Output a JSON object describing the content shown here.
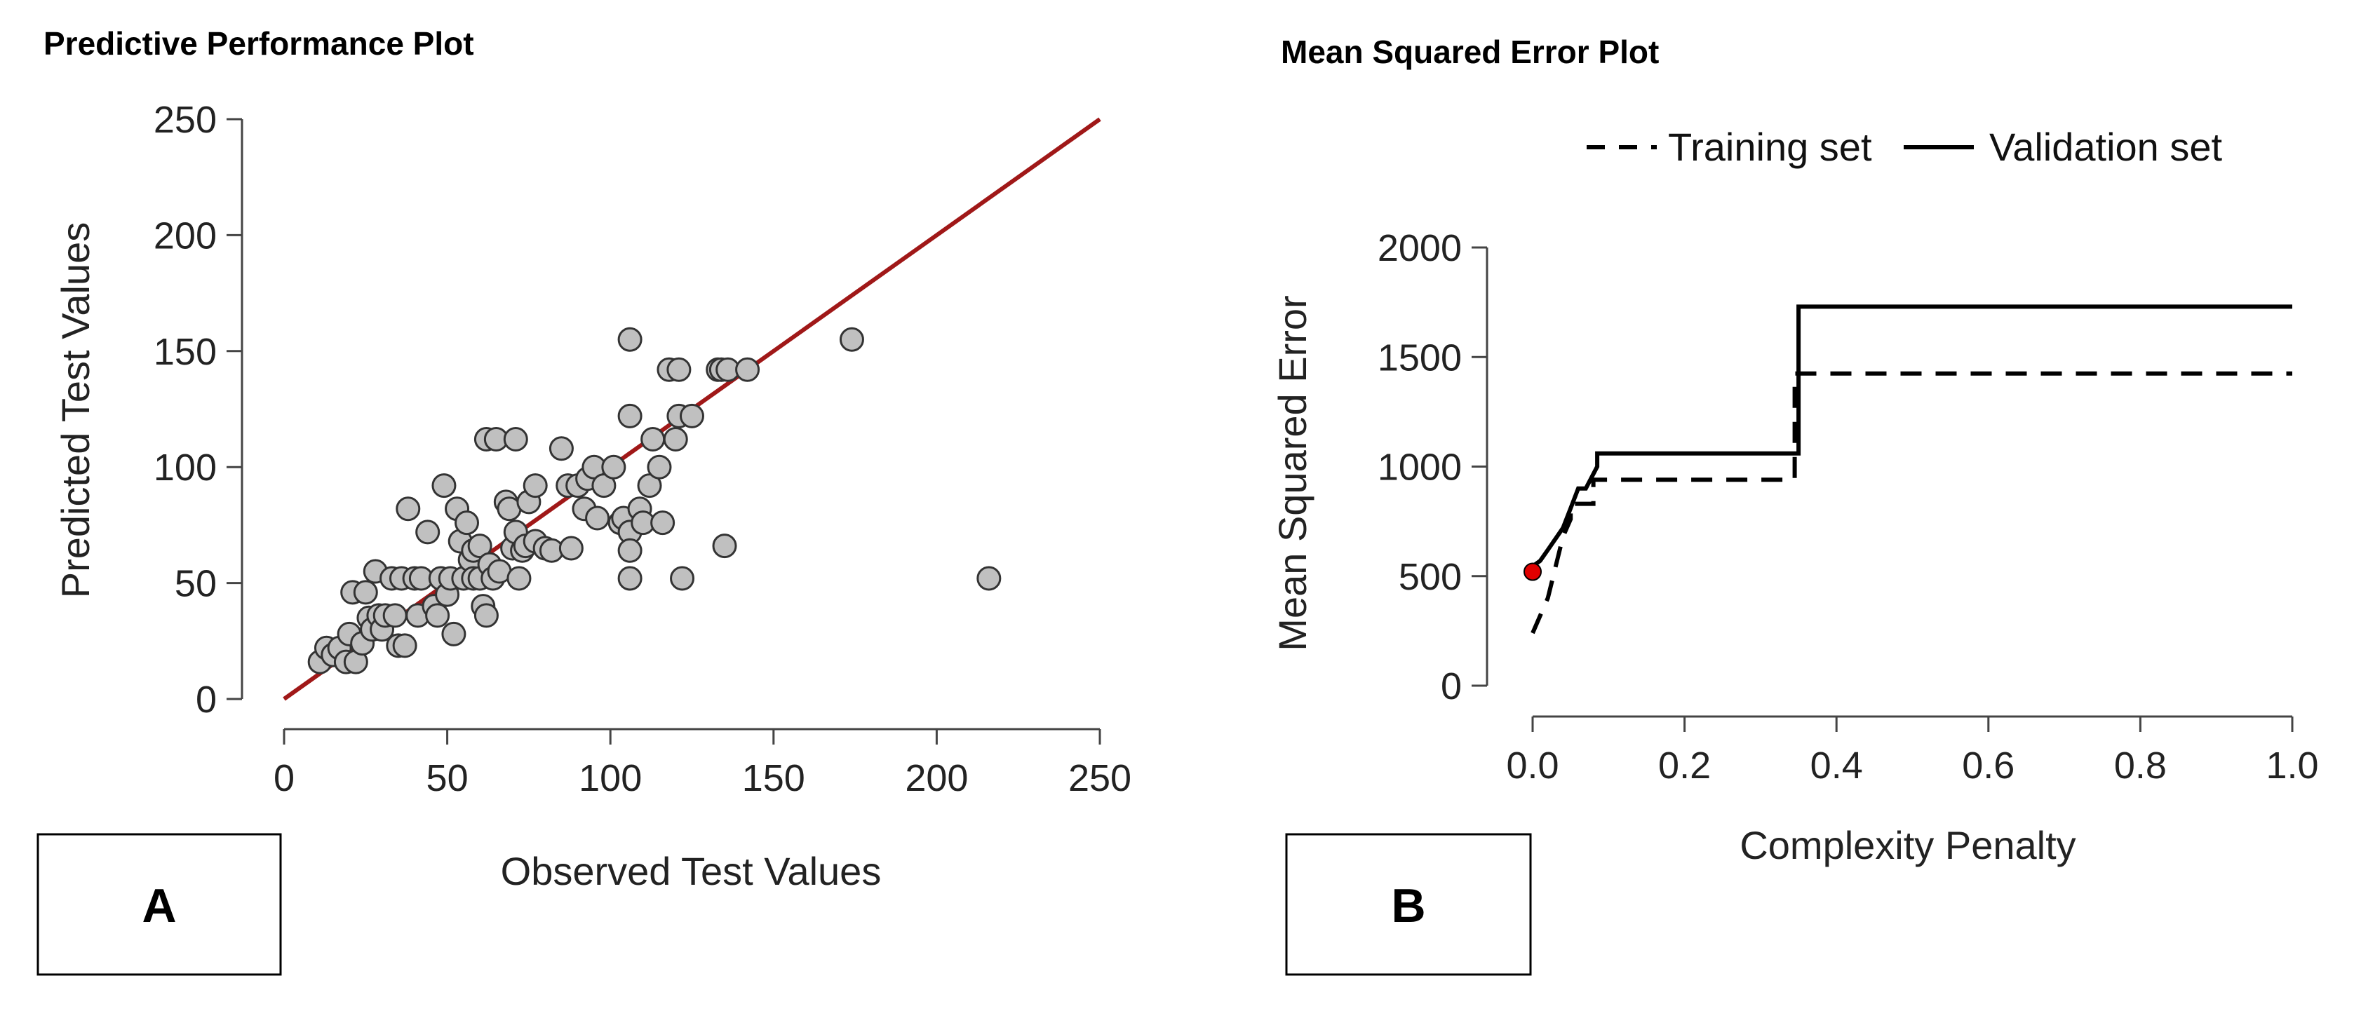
{
  "chart_data": [
    {
      "type": "scatter",
      "title": "Predictive Performance Plot",
      "xlabel": "Observed Test Values",
      "ylabel": "Predicted Test Values",
      "xlim": [
        0,
        250
      ],
      "ylim": [
        0,
        250
      ],
      "xticks": [
        "0",
        "50",
        "100",
        "150",
        "200",
        "250"
      ],
      "yticks": [
        "0",
        "50",
        "100",
        "150",
        "200",
        "250"
      ],
      "grid": false,
      "reference_line": {
        "x": [
          0,
          250
        ],
        "y": [
          0,
          250
        ],
        "color": "#a01818"
      },
      "point_color": "#c0c0c0",
      "panel_label": "A",
      "points": [
        [
          11,
          16
        ],
        [
          13,
          22
        ],
        [
          15,
          19
        ],
        [
          17,
          22
        ],
        [
          19,
          16
        ],
        [
          20,
          28
        ],
        [
          21,
          46
        ],
        [
          22,
          16
        ],
        [
          24,
          24
        ],
        [
          25,
          46
        ],
        [
          26,
          35
        ],
        [
          27,
          30
        ],
        [
          28,
          55
        ],
        [
          29,
          36
        ],
        [
          30,
          30
        ],
        [
          31,
          36
        ],
        [
          33,
          52
        ],
        [
          34,
          36
        ],
        [
          35,
          23
        ],
        [
          36,
          52
        ],
        [
          37,
          23
        ],
        [
          38,
          82
        ],
        [
          40,
          52
        ],
        [
          41,
          36
        ],
        [
          42,
          52
        ],
        [
          44,
          72
        ],
        [
          46,
          40
        ],
        [
          47,
          36
        ],
        [
          48,
          52
        ],
        [
          49,
          92
        ],
        [
          50,
          45
        ],
        [
          51,
          52
        ],
        [
          52,
          28
        ],
        [
          53,
          82
        ],
        [
          54,
          68
        ],
        [
          55,
          52
        ],
        [
          56,
          76
        ],
        [
          57,
          60
        ],
        [
          58,
          52
        ],
        [
          58,
          64
        ],
        [
          60,
          52
        ],
        [
          60,
          66
        ],
        [
          61,
          40
        ],
        [
          62,
          36
        ],
        [
          62,
          112
        ],
        [
          63,
          58
        ],
        [
          64,
          52
        ],
        [
          65,
          112
        ],
        [
          66,
          55
        ],
        [
          68,
          85
        ],
        [
          69,
          82
        ],
        [
          70,
          65
        ],
        [
          71,
          72
        ],
        [
          71,
          112
        ],
        [
          72,
          52
        ],
        [
          73,
          64
        ],
        [
          74,
          66
        ],
        [
          75,
          85
        ],
        [
          77,
          92
        ],
        [
          77,
          68
        ],
        [
          80,
          65
        ],
        [
          82,
          64
        ],
        [
          85,
          108
        ],
        [
          87,
          92
        ],
        [
          88,
          65
        ],
        [
          90,
          92
        ],
        [
          92,
          82
        ],
        [
          93,
          95
        ],
        [
          95,
          100
        ],
        [
          96,
          78
        ],
        [
          98,
          92
        ],
        [
          101,
          100
        ],
        [
          103,
          76
        ],
        [
          104,
          78
        ],
        [
          106,
          155
        ],
        [
          106,
          122
        ],
        [
          106,
          72
        ],
        [
          106,
          64
        ],
        [
          106,
          52
        ],
        [
          109,
          82
        ],
        [
          110,
          76
        ],
        [
          112,
          92
        ],
        [
          113,
          112
        ],
        [
          115,
          100
        ],
        [
          116,
          76
        ],
        [
          118,
          142
        ],
        [
          120,
          112
        ],
        [
          121,
          142
        ],
        [
          121,
          122
        ],
        [
          122,
          52
        ],
        [
          125,
          122
        ],
        [
          133,
          142
        ],
        [
          134,
          142
        ],
        [
          135,
          66
        ],
        [
          136,
          142
        ],
        [
          142,
          142
        ],
        [
          174,
          155
        ],
        [
          216,
          52
        ]
      ]
    },
    {
      "type": "line",
      "title": "Mean Squared Error Plot",
      "xlabel": "Complexity Penalty",
      "ylabel": "Mean Squared Error",
      "xlim": [
        0,
        1
      ],
      "ylim": [
        0,
        2000
      ],
      "xticks": [
        "0.0",
        "0.2",
        "0.4",
        "0.6",
        "0.8",
        "1.0"
      ],
      "yticks": [
        "0",
        "500",
        "1000",
        "1500",
        "2000"
      ],
      "grid": false,
      "legend_position": "top",
      "panel_label": "B",
      "series": [
        {
          "name": "Training set",
          "style": "dashed",
          "x": [
            0.0,
            0.02,
            0.04,
            0.05,
            0.05,
            0.08,
            0.08,
            0.345,
            0.345,
            1.0
          ],
          "y": [
            240,
            400,
            680,
            760,
            830,
            830,
            940,
            940,
            1425,
            1425
          ]
        },
        {
          "name": "Validation set",
          "style": "solid",
          "x": [
            0.0,
            0.01,
            0.02,
            0.04,
            0.05,
            0.06,
            0.07,
            0.085,
            0.085,
            0.34,
            0.35,
            0.35,
            1.0
          ],
          "y": [
            545,
            570,
            620,
            720,
            810,
            900,
            900,
            1000,
            1060,
            1060,
            1060,
            1730,
            1730
          ]
        }
      ],
      "highlight_point": {
        "x": 0.0,
        "y": 520,
        "color": "#e00000"
      }
    }
  ]
}
